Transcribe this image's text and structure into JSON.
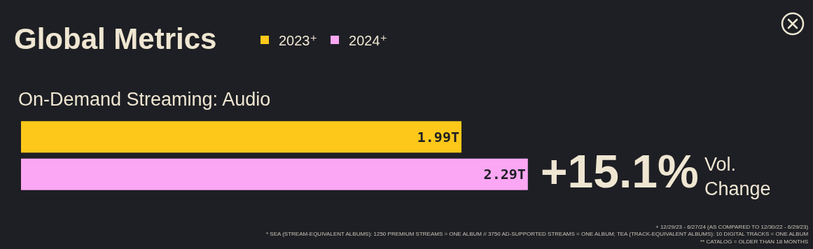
{
  "chart_data": {
    "type": "bar",
    "orientation": "horizontal",
    "title": "Global Metrics",
    "subtitle": "On-Demand Streaming: Audio",
    "categories": [
      null
    ],
    "series": [
      {
        "name": "2023⁺",
        "color": "#fdc81a",
        "values": [
          1.99
        ],
        "value_labels": [
          "1.99T"
        ]
      },
      {
        "name": "2024⁺",
        "color": "#fca7f3",
        "values": [
          2.29
        ],
        "value_labels": [
          "2.29T"
        ]
      }
    ],
    "legend": "top",
    "annotations": [
      "+15.1%",
      "Vol. Change",
      "+ 12/29/23 - 6/27/24 (AS COMPARED TO 12/30/22 - 6/29/23)",
      "* SEA (STREAM-EQUIVALENT ALBUMS): 1250 PREMIUM STREAMS = ONE ALBUM // 3750 AD-SUPPORTED STREAMS = ONE ALBUM; TEA (TRACK-EQUIVALENT ALBUMS): 10 DIGITAL TRACKS = ONE ALBUM",
      "** CATALOG = OLDER THAN 18 MONTHS"
    ]
  }
}
